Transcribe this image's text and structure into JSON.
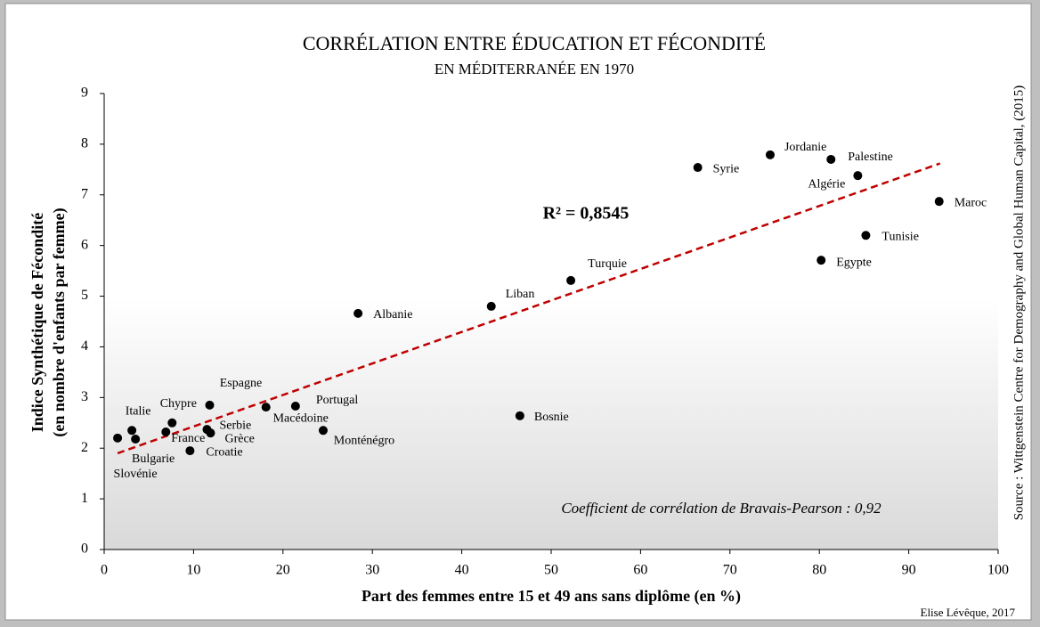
{
  "chart_data": {
    "type": "scatter",
    "title": "CORRÉLATION ENTRE ÉDUCATION ET FÉCONDITÉ",
    "subtitle": "EN MÉDITERRANÉE EN 1970",
    "xlabel": "Part des femmes entre 15 et 49 ans sans diplôme (en %)",
    "ylabel": [
      "Indice Synthétique de Fécondité",
      "(en nombre d'enfants par femme)"
    ],
    "labels": [
      "Slovénie",
      "Bulgarie",
      "Italie",
      "France",
      "Chypre",
      "Croatie",
      "Serbie",
      "Grèce",
      "Espagne",
      "Macédoine",
      "Portugal",
      "Monténégro",
      "Albanie",
      "Liban",
      "Bosnie",
      "Turquie",
      "Syrie",
      "Jordanie",
      "Palestine",
      "Algérie",
      "Egypte",
      "Tunisie",
      "Maroc"
    ],
    "x": [
      1.5,
      3.5,
      3.1,
      6.9,
      7.6,
      9.6,
      11.5,
      11.9,
      11.8,
      18.1,
      21.4,
      24.5,
      28.4,
      43.3,
      46.5,
      52.2,
      66.4,
      74.5,
      81.3,
      84.3,
      80.2,
      85.2,
      93.4
    ],
    "values": [
      2.2,
      2.18,
      2.35,
      2.32,
      2.5,
      1.95,
      2.37,
      2.3,
      2.85,
      2.81,
      2.83,
      2.35,
      4.66,
      4.8,
      2.64,
      5.31,
      7.54,
      7.79,
      7.7,
      7.38,
      5.71,
      6.2,
      6.87
    ],
    "color": "#000000",
    "trend_line": {
      "x": [
        1.5,
        93.5
      ],
      "y": [
        1.9,
        7.62
      ],
      "color": "#c00000"
    },
    "r2_label": "R² = 0,8545",
    "annotation": "Coefficient de corrélation de Bravais-Pearson : 0,92",
    "source": "Source : Wittgenstein Centre for Demography and Global Human Capital, (2015)",
    "credit": "Elise Lévêque, 2017",
    "xlim": [
      0,
      100
    ],
    "xticks": [
      0,
      10,
      20,
      30,
      40,
      50,
      60,
      70,
      80,
      90,
      100
    ],
    "ylim": [
      0,
      9
    ],
    "yticks": [
      0,
      1,
      2,
      3,
      4,
      5,
      6,
      7,
      8,
      9
    ],
    "grid": false
  }
}
